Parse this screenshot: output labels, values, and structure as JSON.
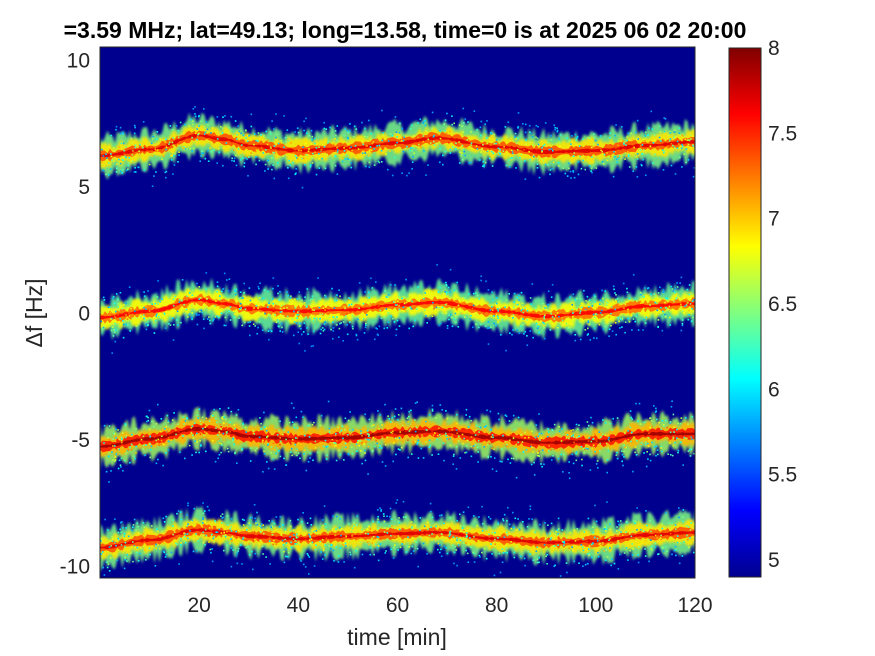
{
  "chart_data": {
    "type": "heatmap",
    "title": "=3.59 MHz;  lat=49.13; long=13.58, time=0 is at 2025 06 02 20:00",
    "xlabel": "time [min]",
    "ylabel": "Δf [Hz]",
    "xlim": [
      0,
      120
    ],
    "ylim": [
      -10.5,
      10.5
    ],
    "xticks": [
      "20",
      "40",
      "60",
      "80",
      "100",
      "120"
    ],
    "yticks": [
      "10",
      "5",
      "0",
      "-5",
      "-10"
    ],
    "colorbar": {
      "range": [
        4.9,
        8
      ],
      "ticks": [
        "8",
        "7.5",
        "7",
        "6.5",
        "6",
        "5.5",
        "5"
      ],
      "colormap": "jet"
    },
    "background_color": "#00008F",
    "series": [
      {
        "baseline_hz": 6.3,
        "x": [
          0,
          10,
          20,
          25,
          30,
          40,
          50,
          60,
          68,
          80,
          90,
          100,
          110,
          120
        ],
        "y": [
          6.2,
          6.45,
          7.0,
          6.85,
          6.6,
          6.4,
          6.5,
          6.7,
          6.9,
          6.55,
          6.35,
          6.4,
          6.6,
          6.75
        ],
        "peak_level": 7.7
      },
      {
        "baseline_hz": 0.0,
        "x": [
          0,
          10,
          20,
          25,
          30,
          40,
          50,
          60,
          68,
          80,
          90,
          100,
          110,
          120
        ],
        "y": [
          -0.2,
          0.05,
          0.5,
          0.35,
          0.15,
          0.05,
          0.1,
          0.3,
          0.4,
          0.05,
          -0.15,
          0.0,
          0.25,
          0.35
        ],
        "peak_level": 7.6
      },
      {
        "baseline_hz": -5.0,
        "x": [
          0,
          10,
          20,
          25,
          30,
          40,
          50,
          60,
          68,
          80,
          90,
          100,
          110,
          120
        ],
        "y": [
          -5.3,
          -5.0,
          -4.6,
          -4.7,
          -4.9,
          -5.0,
          -4.95,
          -4.75,
          -4.7,
          -4.95,
          -5.15,
          -5.1,
          -4.8,
          -4.8
        ],
        "peak_level": 7.9
      },
      {
        "baseline_hz": -9.0,
        "x": [
          0,
          10,
          20,
          25,
          30,
          40,
          50,
          60,
          68,
          80,
          90,
          100,
          110,
          120
        ],
        "y": [
          -9.3,
          -9.0,
          -8.6,
          -8.7,
          -8.85,
          -8.95,
          -8.85,
          -8.75,
          -8.7,
          -8.95,
          -9.1,
          -9.05,
          -8.8,
          -8.7
        ],
        "peak_level": 7.7
      }
    ]
  }
}
